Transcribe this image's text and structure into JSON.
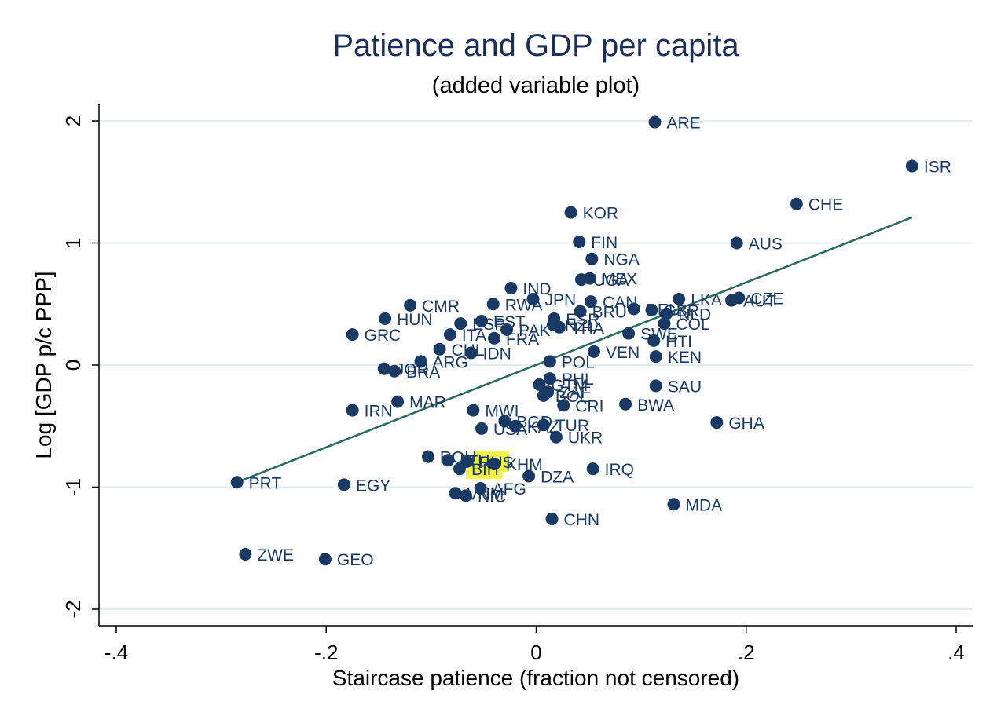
{
  "chart_data": {
    "type": "scatter",
    "title": "Patience and GDP per capita",
    "subtitle": "(added variable plot)",
    "xlabel": "Staircase patience (fraction not censored)",
    "ylabel": "Log [GDP p/c PPP]",
    "xlim": [
      -0.4,
      0.4
    ],
    "ylim": [
      -2,
      2
    ],
    "xticks": [
      -0.4,
      -0.2,
      0,
      0.2,
      0.4
    ],
    "xtick_labels": [
      "-.4",
      "-.2",
      "0",
      ".2",
      ".4"
    ],
    "yticks": [
      -2,
      -1,
      0,
      1,
      2
    ],
    "ytick_labels": [
      "-2",
      "-1",
      "0",
      "1",
      "2"
    ],
    "grid": true,
    "fit_line": {
      "x": [
        -0.285,
        0.358
      ],
      "y": [
        -0.96,
        1.21
      ]
    },
    "points": [
      {
        "label": "ARE",
        "x": 0.113,
        "y": 1.99
      },
      {
        "label": "ISR",
        "x": 0.358,
        "y": 1.63
      },
      {
        "label": "CHE",
        "x": 0.248,
        "y": 1.32
      },
      {
        "label": "AUS",
        "x": 0.191,
        "y": 1.0
      },
      {
        "label": "KOR",
        "x": 0.033,
        "y": 1.25
      },
      {
        "label": "FIN",
        "x": 0.041,
        "y": 1.01
      },
      {
        "label": "NGA",
        "x": 0.053,
        "y": 0.87
      },
      {
        "label": "MEX",
        "x": 0.051,
        "y": 0.71
      },
      {
        "label": "UGA",
        "x": 0.043,
        "y": 0.7
      },
      {
        "label": "IND",
        "x": -0.024,
        "y": 0.63
      },
      {
        "label": "JPN",
        "x": -0.003,
        "y": 0.54
      },
      {
        "label": "CMR",
        "x": -0.12,
        "y": 0.49
      },
      {
        "label": "RWA",
        "x": -0.041,
        "y": 0.5
      },
      {
        "label": "CAN",
        "x": 0.052,
        "y": 0.52
      },
      {
        "label": "LKA",
        "x": 0.136,
        "y": 0.54
      },
      {
        "label": "CZE",
        "x": 0.193,
        "y": 0.55
      },
      {
        "label": "AUT",
        "x": 0.186,
        "y": 0.53
      },
      {
        "label": "GBR",
        "x": 0.11,
        "y": 0.45
      },
      {
        "label": "NLD",
        "x": 0.124,
        "y": 0.42
      },
      {
        "label": "DEU",
        "x": 0.093,
        "y": 0.46
      },
      {
        "label": "BRU",
        "x": 0.042,
        "y": 0.44
      },
      {
        "label": "HUN",
        "x": -0.144,
        "y": 0.38
      },
      {
        "label": "EST",
        "x": -0.052,
        "y": 0.36
      },
      {
        "label": "ESP",
        "x": -0.072,
        "y": 0.34
      },
      {
        "label": "ESR",
        "x": 0.017,
        "y": 0.38
      },
      {
        "label": "PAK",
        "x": -0.028,
        "y": 0.29
      },
      {
        "label": "NZL",
        "x": 0.016,
        "y": 0.33
      },
      {
        "label": "THA",
        "x": 0.022,
        "y": 0.31
      },
      {
        "label": "COL",
        "x": 0.122,
        "y": 0.34
      },
      {
        "label": "GRC",
        "x": -0.175,
        "y": 0.25
      },
      {
        "label": "ITA",
        "x": -0.082,
        "y": 0.25
      },
      {
        "label": "FRA",
        "x": -0.04,
        "y": 0.22
      },
      {
        "label": "SWE",
        "x": 0.088,
        "y": 0.26
      },
      {
        "label": "HTI",
        "x": 0.112,
        "y": 0.2
      },
      {
        "label": "CHL",
        "x": -0.092,
        "y": 0.13
      },
      {
        "label": "IDN",
        "x": -0.062,
        "y": 0.1
      },
      {
        "label": "VEN",
        "x": 0.055,
        "y": 0.11
      },
      {
        "label": "KEN",
        "x": 0.114,
        "y": 0.07
      },
      {
        "label": "ARG",
        "x": -0.11,
        "y": 0.03
      },
      {
        "label": "POL",
        "x": 0.013,
        "y": 0.03
      },
      {
        "label": "JOR",
        "x": -0.145,
        "y": -0.03
      },
      {
        "label": "BRA",
        "x": -0.135,
        "y": -0.05
      },
      {
        "label": "PHL",
        "x": 0.013,
        "y": -0.11
      },
      {
        "label": "SAU",
        "x": 0.114,
        "y": -0.17
      },
      {
        "label": "GTM",
        "x": 0.003,
        "y": -0.16
      },
      {
        "label": "ZAF",
        "x": 0.011,
        "y": -0.22
      },
      {
        "label": "BOL",
        "x": 0.007,
        "y": -0.25
      },
      {
        "label": "CRI",
        "x": 0.026,
        "y": -0.33
      },
      {
        "label": "BWA",
        "x": 0.085,
        "y": -0.32
      },
      {
        "label": "MAR",
        "x": -0.132,
        "y": -0.3
      },
      {
        "label": "IRN",
        "x": -0.175,
        "y": -0.37
      },
      {
        "label": "MWI",
        "x": -0.06,
        "y": -0.37
      },
      {
        "label": "BGD",
        "x": -0.03,
        "y": -0.46
      },
      {
        "label": "GHA",
        "x": 0.172,
        "y": -0.47
      },
      {
        "label": "USA",
        "x": -0.052,
        "y": -0.52
      },
      {
        "label": "KAZ",
        "x": -0.02,
        "y": -0.5
      },
      {
        "label": "TUR",
        "x": 0.007,
        "y": -0.49
      },
      {
        "label": "UKR",
        "x": 0.019,
        "y": -0.59
      },
      {
        "label": "ROU",
        "x": -0.103,
        "y": -0.75
      },
      {
        "label": "LTU",
        "x": -0.084,
        "y": -0.78
      },
      {
        "label": "RUS",
        "x": -0.066,
        "y": -0.79
      },
      {
        "label": "KHM",
        "x": -0.04,
        "y": -0.81
      },
      {
        "label": "BIH",
        "x": -0.073,
        "y": -0.85
      },
      {
        "label": "IRQ",
        "x": 0.054,
        "y": -0.85
      },
      {
        "label": "DZA",
        "x": -0.007,
        "y": -0.91
      },
      {
        "label": "AFG",
        "x": -0.053,
        "y": -1.01
      },
      {
        "label": "VNM",
        "x": -0.077,
        "y": -1.05
      },
      {
        "label": "NIC",
        "x": -0.067,
        "y": -1.07
      },
      {
        "label": "PRT",
        "x": -0.285,
        "y": -0.96
      },
      {
        "label": "EGY",
        "x": -0.183,
        "y": -0.98
      },
      {
        "label": "MDA",
        "x": 0.131,
        "y": -1.14
      },
      {
        "label": "CHN",
        "x": 0.015,
        "y": -1.26
      },
      {
        "label": "ZWE",
        "x": -0.277,
        "y": -1.55
      },
      {
        "label": "GEO",
        "x": -0.201,
        "y": -1.59
      }
    ],
    "highlighted": [
      "RUS",
      "BIH"
    ]
  }
}
